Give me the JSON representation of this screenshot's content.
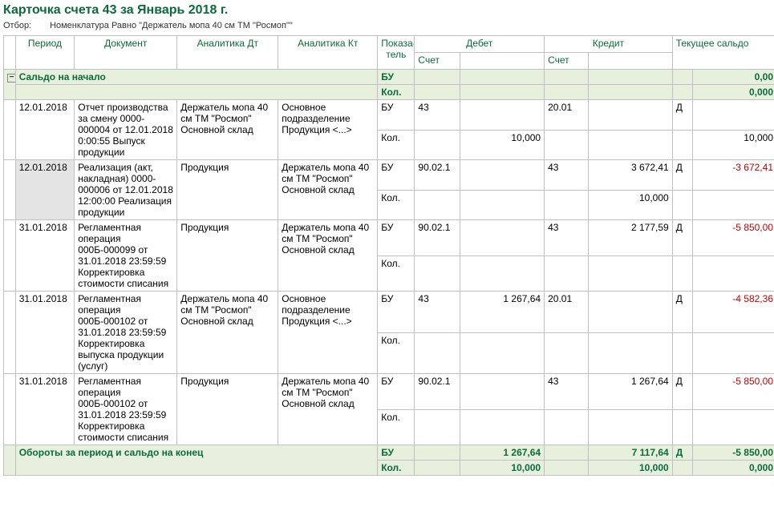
{
  "title": "Карточка счета 43 за Январь 2018 г.",
  "filter": {
    "label": "Отбор:",
    "text": "Номенклатура Равно \"Держатель мопа 40 см ТМ \"Росмоп\"\""
  },
  "columns": {
    "period": "Период",
    "document": "Документ",
    "analytics_dt": "Аналитика Дт",
    "analytics_kt": "Аналитика Кт",
    "indicator": "Показа-\nтель",
    "debit": "Дебет",
    "credit": "Кредит",
    "balance": "Текущее сальдо",
    "account": "Счет"
  },
  "opening": {
    "label": "Сальдо на начало",
    "indicator_bu": "БУ",
    "indicator_kol": "Кол.",
    "amount": "0,00",
    "qty": "0,000"
  },
  "rows": [
    {
      "period": "12.01.2018",
      "doc": "Отчет производства за смену 0000-000004 от 12.01.2018 0:00:55 Выпуск продукции",
      "an_dt": "Держатель мопа 40 см ТМ \"Росмоп\" Основной склад",
      "an_kt": "Основное подразделение Продукция <...>",
      "ind_bu": "БУ",
      "ind_kol": "Кол.",
      "dt_acc": "43",
      "dt_sum": "",
      "dt_kol": "10,000",
      "kt_acc": "20.01",
      "kt_sum": "",
      "kt_kol": "",
      "sal_d": "Д",
      "sal_amt": "",
      "sal_kol": "10,000"
    },
    {
      "period": "12.01.2018",
      "selected": true,
      "doc": "Реализация (акт, накладная) 0000-000006 от 12.01.2018 12:00:00 Реализация продукции",
      "an_dt": "Продукция",
      "an_kt": "Держатель мопа 40 см ТМ \"Росмоп\" Основной склад",
      "ind_bu": "БУ",
      "ind_kol": "Кол.",
      "dt_acc": "90.02.1",
      "dt_sum": "",
      "dt_kol": "",
      "kt_acc": "43",
      "kt_sum": "3 672,41",
      "kt_kol": "10,000",
      "sal_d": "Д",
      "sal_amt": "-3 672,41",
      "sal_kol": "",
      "sal_neg": true
    },
    {
      "period": "31.01.2018",
      "doc": "Регламентная операция 000Б-000099 от 31.01.2018 23:59:59 Корректировка стоимости списания",
      "an_dt": "Продукция",
      "an_kt": "Держатель мопа 40 см ТМ \"Росмоп\" Основной склад",
      "ind_bu": "БУ",
      "ind_kol": "Кол.",
      "dt_acc": "90.02.1",
      "dt_sum": "",
      "dt_kol": "",
      "kt_acc": "43",
      "kt_sum": "2 177,59",
      "kt_kol": "",
      "sal_d": "Д",
      "sal_amt": "-5 850,00",
      "sal_kol": "",
      "sal_neg": true
    },
    {
      "period": "31.01.2018",
      "doc": "Регламентная операция 000Б-000102 от 31.01.2018 23:59:59 Корректировка выпуска продукции (услуг)",
      "an_dt": "Держатель мопа 40 см ТМ \"Росмоп\" Основной склад",
      "an_kt": "Основное подразделение Продукция <...>",
      "ind_bu": "БУ",
      "ind_kol": "Кол.",
      "dt_acc": "43",
      "dt_sum": "1 267,64",
      "dt_kol": "",
      "kt_acc": "20.01",
      "kt_sum": "",
      "kt_kol": "",
      "sal_d": "Д",
      "sal_amt": "-4 582,36",
      "sal_kol": "",
      "sal_neg": true
    },
    {
      "period": "31.01.2018",
      "doc": "Регламентная операция 000Б-000102 от 31.01.2018 23:59:59 Корректировка стоимости списания",
      "an_dt": "Продукция",
      "an_kt": "Держатель мопа 40 см ТМ \"Росмоп\" Основной склад",
      "ind_bu": "БУ",
      "ind_kol": "Кол.",
      "dt_acc": "90.02.1",
      "dt_sum": "",
      "dt_kol": "",
      "kt_acc": "43",
      "kt_sum": "1 267,64",
      "kt_kol": "",
      "sal_d": "Д",
      "sal_amt": "-5 850,00",
      "sal_kol": "",
      "sal_neg": true
    }
  ],
  "totals": {
    "label": "Обороты за период и сальдо на конец",
    "ind_bu": "БУ",
    "ind_kol": "Кол.",
    "dt_sum": "1 267,64",
    "dt_kol": "10,000",
    "kt_sum": "7 117,64",
    "kt_kol": "10,000",
    "sal_d": "Д",
    "sal_amt": "-5 850,00",
    "sal_kol": "0,000",
    "sal_neg": true
  },
  "style": {
    "header_color": "#0b6b3a",
    "opening_bg": "#e6f0dc",
    "totals_bg": "#e6f0dc",
    "neg_color": "#c00000",
    "border_color": "#c0c0c0"
  }
}
